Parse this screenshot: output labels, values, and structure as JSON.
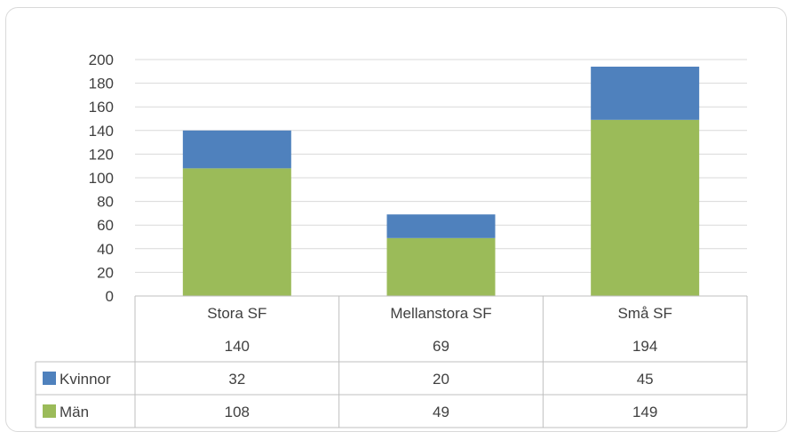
{
  "chart_data": {
    "type": "bar",
    "stacked": true,
    "categories": [
      "Stora SF",
      "Mellanstora SF",
      "Små SF"
    ],
    "totals": [
      140,
      69,
      194
    ],
    "series": [
      {
        "name": "Män",
        "values": [
          108,
          49,
          149
        ],
        "color": "#9bbb59"
      },
      {
        "name": "Kvinnor",
        "values": [
          32,
          20,
          45
        ],
        "color": "#4f81bd"
      }
    ],
    "ylim": [
      0,
      200
    ],
    "yticks": [
      0,
      20,
      40,
      60,
      80,
      100,
      120,
      140,
      160,
      180,
      200
    ],
    "grid": true,
    "legend": "data-table-left",
    "data_table": true
  }
}
